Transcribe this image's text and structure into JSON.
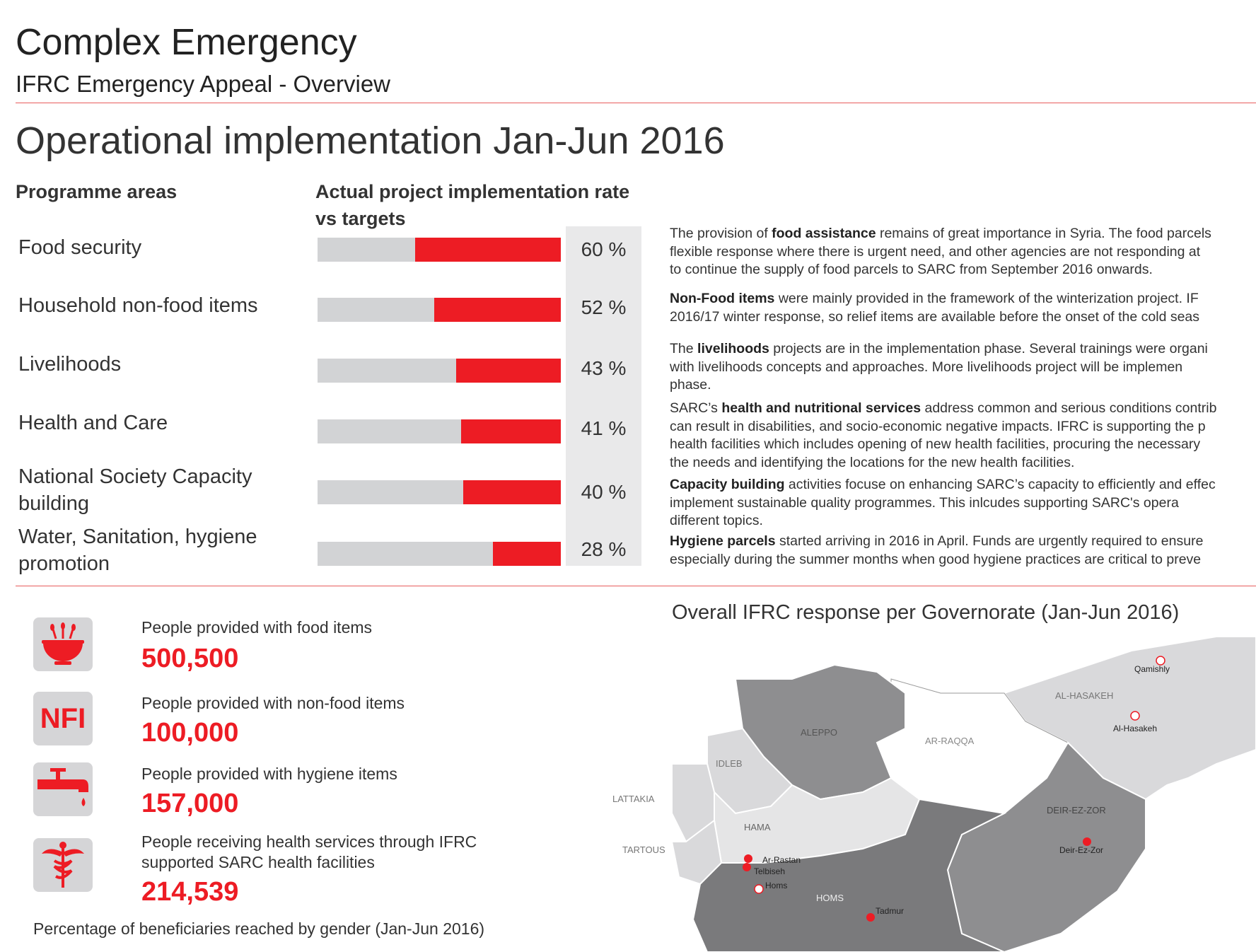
{
  "header": {
    "title": "Complex Emergency",
    "subtitle": "IFRC Emergency Appeal - Overview",
    "section_title": "Operational implementation Jan-Jun 2016"
  },
  "implementation": {
    "col_programme": "Programme areas",
    "col_rate_line1": "Actual project implementation rate",
    "col_rate_line2": "vs targets",
    "rows": [
      {
        "label_line1": "Food security",
        "label_line2": "",
        "rate": 60,
        "rate_label": "60 %"
      },
      {
        "label_line1": "Household non-food items",
        "label_line2": "",
        "rate": 52,
        "rate_label": "52 %"
      },
      {
        "label_line1": "Livelihoods",
        "label_line2": "",
        "rate": 43,
        "rate_label": "43 %"
      },
      {
        "label_line1": "Health and Care",
        "label_line2": "",
        "rate": 41,
        "rate_label": "41 %"
      },
      {
        "label_line1": "National Society Capacity",
        "label_line2": "building",
        "rate": 40,
        "rate_label": "40 %"
      },
      {
        "label_line1": "Water, Sanitation, hygiene",
        "label_line2": "promotion",
        "rate": 28,
        "rate_label": "28 %"
      }
    ]
  },
  "descriptions": {
    "food_1": "The provision of ",
    "food_b": "food assistance",
    "food_2": " remains of great importance in Syria. The food parcels",
    "food_l2": "flexible response where there is urgent need, and other agencies are not responding at",
    "food_l3": "to continue the supply of food parcels to SARC from September 2016 onwards.",
    "nfi_b": "Non-Food items",
    "nfi_1": " were mainly provided in the framework of the winterization project. IF",
    "nfi_l2": "2016/17 winter response, so relief items are available before the onset of the cold seas",
    "liv_1": "The ",
    "liv_b": "livelihoods",
    "liv_2": " projects are in the implementation phase. Several trainings were organi",
    "liv_l2": "with livelihoods concepts and approaches. More livelihoods project will be implemen",
    "liv_l3": "phase.",
    "health_1": "SARC’s ",
    "health_b": "health and nutritional services",
    "health_2": " address common and serious conditions contrib",
    "health_l2": "can result in disabilities, and socio-economic negative impacts. IFRC is supporting the p",
    "health_l3": "health facilities which includes opening of new health facilities, procuring the necessary",
    "health_l4": "the needs and identifying the locations for the new health facilities.",
    "cap_b": "Capacity building",
    "cap_1": " activities focuse on enhancing SARC’s capacity to efficiently and effec",
    "cap_l2": "implement sustainable quality programmes. This inlcudes supporting SARC's opera",
    "cap_l3": "different topics.",
    "hyg_b": "Hygiene parcels",
    "hyg_1": " started arriving in 2016 in April. Funds are urgently required to ensure",
    "hyg_l2": "especially during the summer months when good hygiene practices are critical to preve"
  },
  "stats": [
    {
      "label": "People provided with food items",
      "value": "500,500",
      "icon": "food-bowl-icon"
    },
    {
      "label": "People provided with non-food items",
      "value": "100,000",
      "icon": "nfi-icon",
      "icon_text": "NFI"
    },
    {
      "label": "People provided with hygiene items",
      "value": "157,000",
      "icon": "water-tap-icon"
    },
    {
      "label_line1": "People receiving health services through IFRC",
      "label_line2": "supported SARC health facilities",
      "value": "214,539",
      "icon": "caduceus-icon"
    }
  ],
  "gender_title": "Percentage of beneficiaries reached by gender (Jan-Jun 2016)",
  "map": {
    "title": "Overall IFRC response per Governorate (Jan-Jun 2016)",
    "governorates": [
      "ALEPPO",
      "AR-RAQQA",
      "AL-HASAKEH",
      "IDLEB",
      "LATTAKIA",
      "HAMA",
      "TARTOUS",
      "DEIR-EZ-ZOR",
      "HOMS"
    ],
    "cities": [
      "Qamishly",
      "Al-Hasakeh",
      "Deir-Ez-Zor",
      "Ar-Rastan",
      "Telbiseh",
      "Homs",
      "Tadmur"
    ]
  },
  "colors": {
    "accent": "#ed1c24",
    "bar_bg": "#d2d3d5",
    "rule": "#e85c5c"
  }
}
